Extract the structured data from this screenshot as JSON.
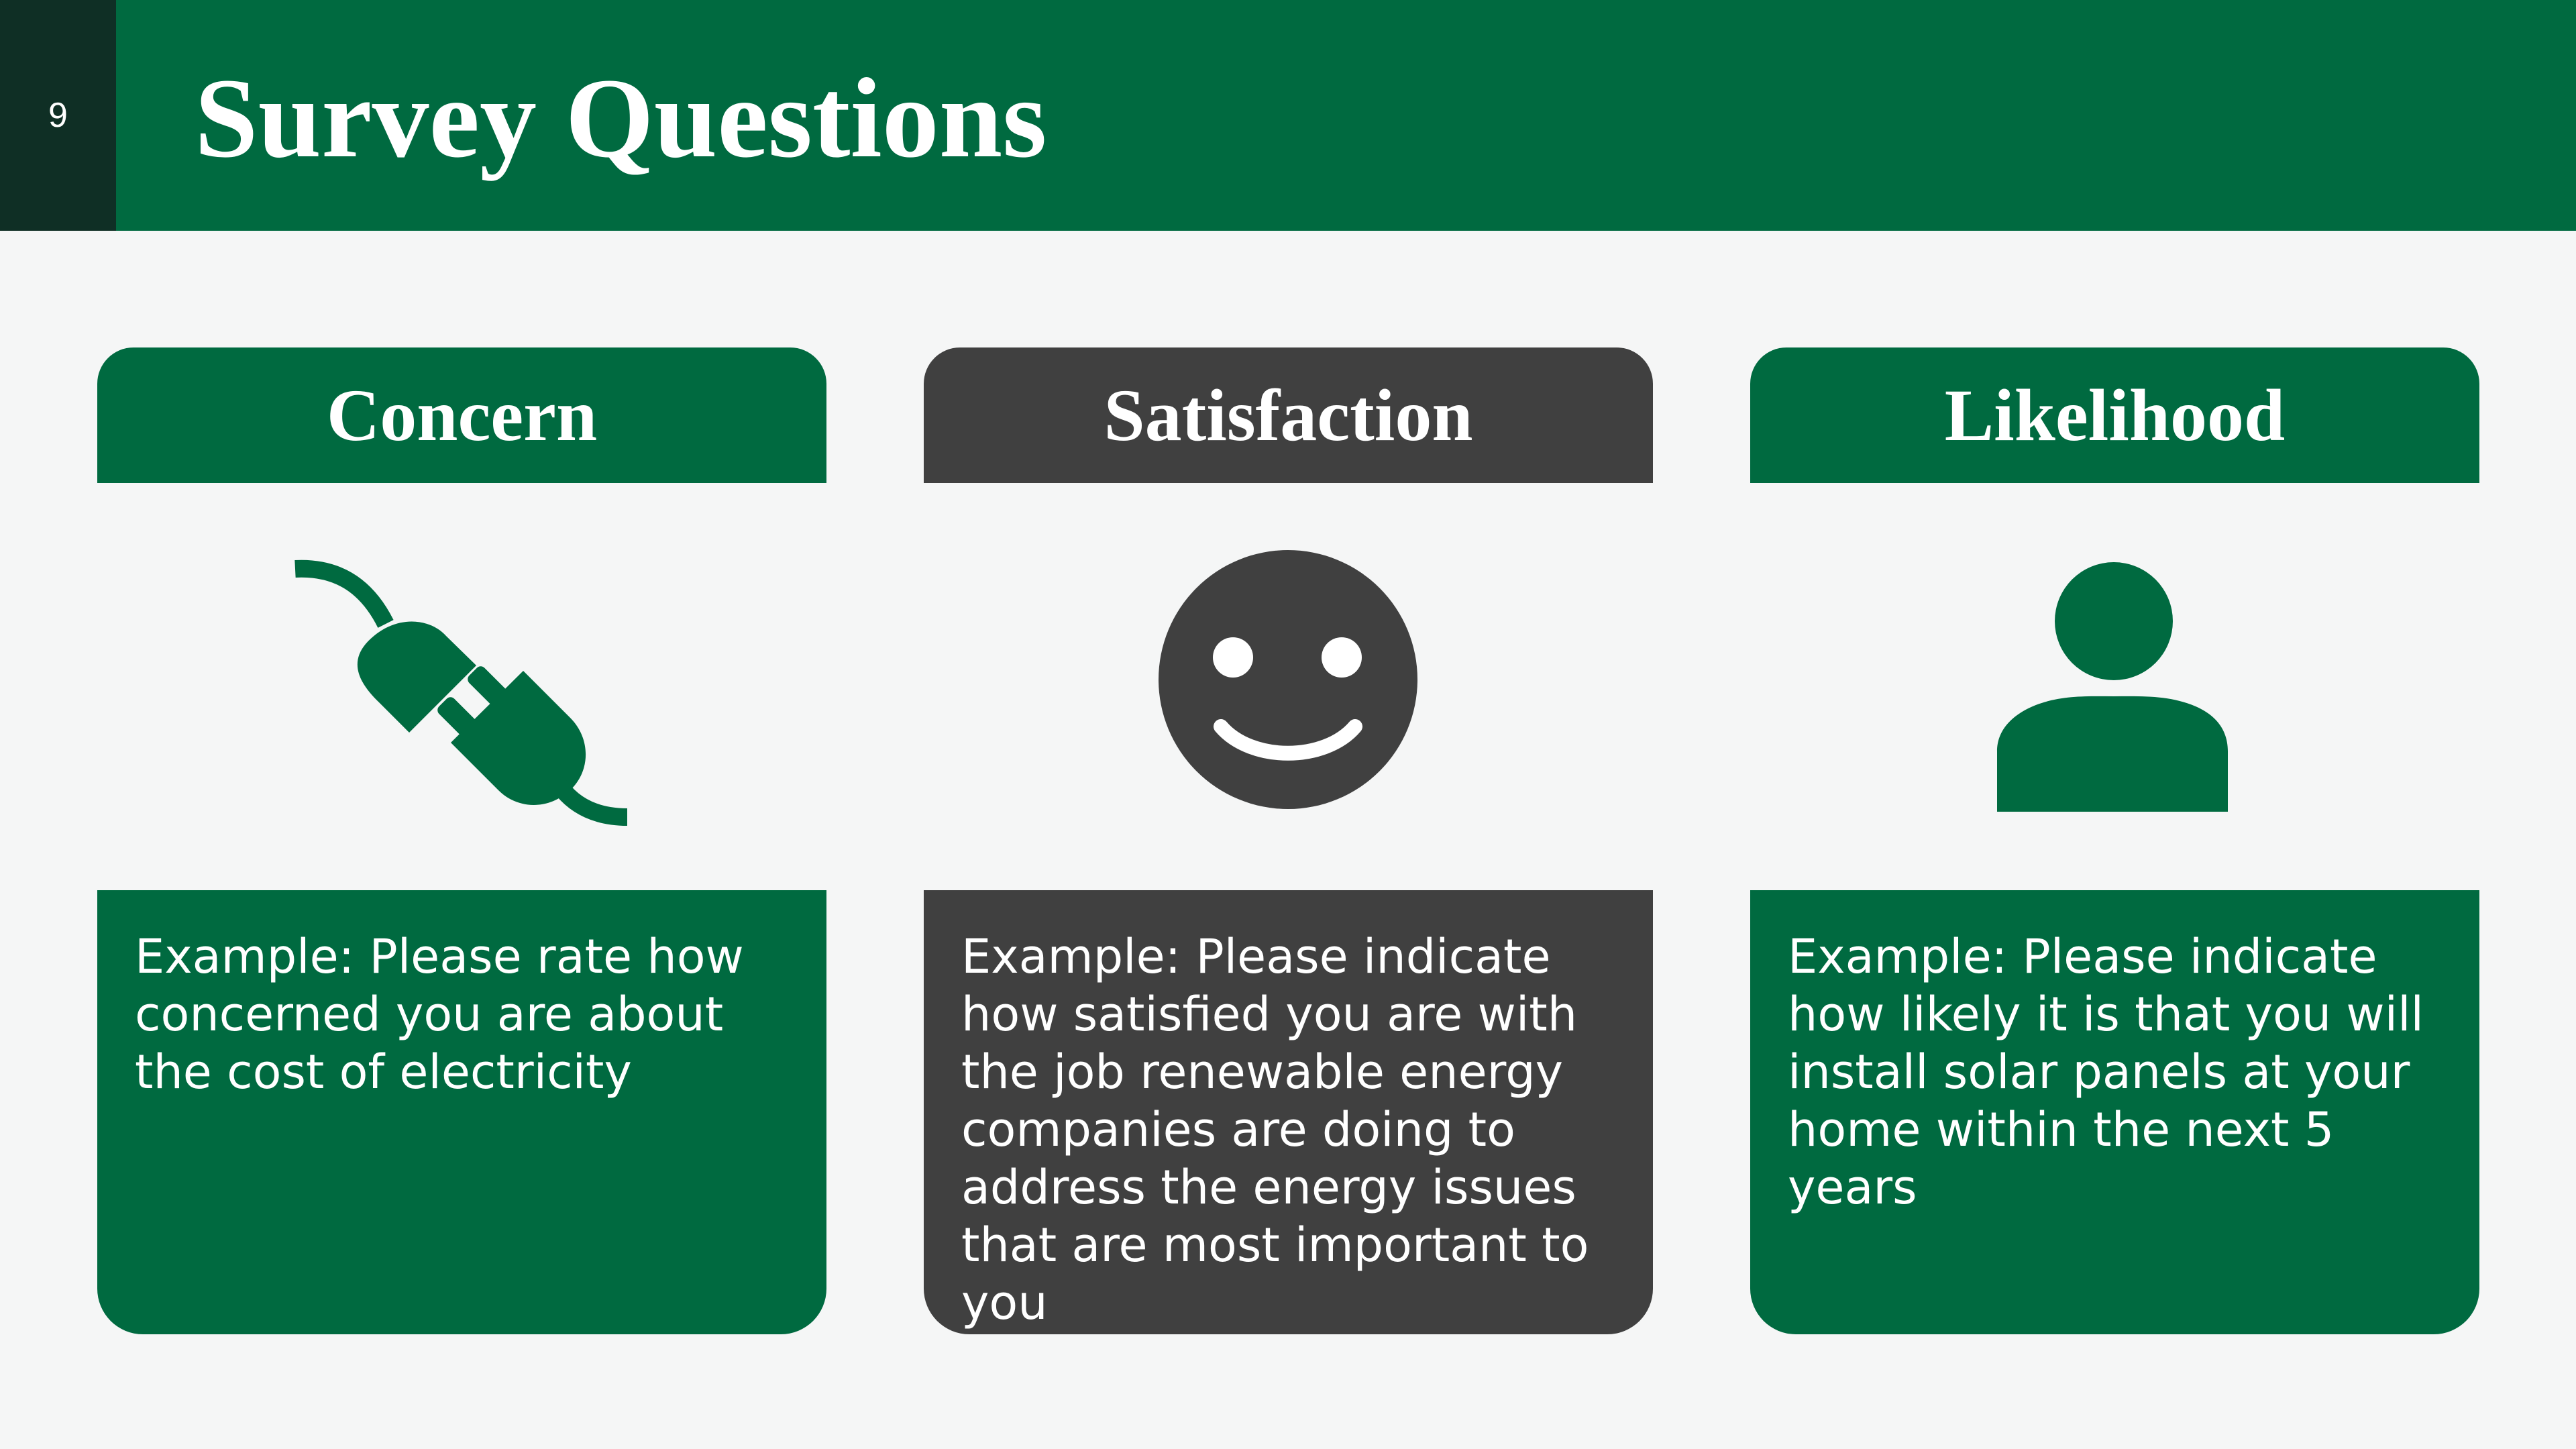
{
  "slide": {
    "number": "9",
    "title": "Survey Questions"
  },
  "colors": {
    "green": "#006a40",
    "gray": "#404040",
    "dark": "#0f2f25",
    "background": "#f5f6f6"
  },
  "cards": [
    {
      "heading": "Concern",
      "icon": "plug-icon",
      "text": "Example: Please rate how concerned you are about the cost of electricity"
    },
    {
      "heading": "Satisfaction",
      "icon": "smiley-icon",
      "text": "Example: Please indicate how satisfied you are with the job renewable energy companies are doing to address the energy issues that are most important to you"
    },
    {
      "heading": "Likelihood",
      "icon": "person-icon",
      "text": "Example: Please indicate how likely it is that you will install solar panels at your home within the next 5 years"
    }
  ]
}
